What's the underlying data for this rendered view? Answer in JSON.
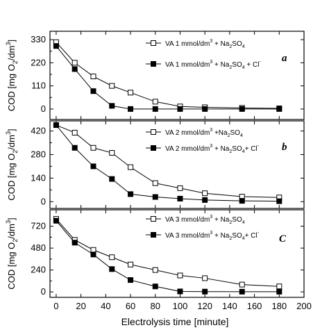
{
  "figure": {
    "xlabel": "Electrolysis time [minute]",
    "xticks": [
      "0",
      "20",
      "40",
      "60",
      "80",
      "100",
      "120",
      "140",
      "160",
      "180",
      "200"
    ]
  },
  "chart_data": [
    {
      "type": "line",
      "panel_label": "a",
      "ylabel": "COD [mg O2/dm3]",
      "xlabel": "",
      "xlim": [
        -5,
        200
      ],
      "ylim": [
        -50,
        370
      ],
      "yticks": [
        0,
        110,
        220,
        330
      ],
      "ytick_labels": [
        "0",
        "110",
        "220",
        "330"
      ],
      "legend_position": "top-right",
      "series": [
        {
          "name": "VA 1 mmol/dm3 + Na2SO4",
          "marker": "open-square",
          "x": [
            0,
            15,
            30,
            45,
            60,
            80,
            100,
            120,
            150,
            180
          ],
          "y": [
            318,
            220,
            155,
            110,
            78,
            35,
            12,
            8,
            5,
            3
          ]
        },
        {
          "name": "VA 1 mmol/dm3 + Na2SO4 + Cl-",
          "marker": "filled-square",
          "x": [
            0,
            15,
            30,
            45,
            60,
            80,
            100,
            120,
            150,
            180
          ],
          "y": [
            300,
            190,
            85,
            15,
            0,
            0,
            0,
            0,
            0,
            0
          ]
        }
      ],
      "legend_labels": [
        {
          "base": "VA 1 mmol/dm",
          "sup": "3",
          "mid": " + Na",
          "sub": "2",
          "tail": "SO",
          "sub2": "4",
          "end": ""
        },
        {
          "base": "VA 1 mmol/dm",
          "sup": "3",
          "mid": " + Na",
          "sub": "2",
          "tail": "SO",
          "sub2": "4",
          "end": " + Cl",
          "sup2": "-"
        }
      ]
    },
    {
      "type": "line",
      "panel_label": "b",
      "ylabel": "COD [mg O2/dm3]",
      "xlabel": "",
      "xlim": [
        -5,
        200
      ],
      "ylim": [
        -40,
        480
      ],
      "yticks": [
        0,
        140,
        280,
        420
      ],
      "ytick_labels": [
        "0",
        "140",
        "280",
        "420"
      ],
      "legend_position": "top-right",
      "series": [
        {
          "name": "VA 2 mmol/dm3 + Na2SO4",
          "marker": "open-square",
          "x": [
            0,
            15,
            30,
            45,
            60,
            80,
            100,
            120,
            150,
            180
          ],
          "y": [
            455,
            410,
            320,
            290,
            205,
            110,
            80,
            50,
            30,
            25
          ]
        },
        {
          "name": "VA 2 mmol/dm3 + Na2SO4 + Cl-",
          "marker": "filled-square",
          "x": [
            0,
            15,
            30,
            45,
            60,
            80,
            100,
            120,
            150,
            180
          ],
          "y": [
            455,
            320,
            210,
            135,
            45,
            28,
            18,
            10,
            5,
            3
          ]
        }
      ],
      "legend_labels": [
        {
          "base": "VA 2 mmol/dm",
          "sup": "3",
          "mid": " +Na",
          "sub": "2",
          "tail": "SO",
          "sub2": "4",
          "end": ""
        },
        {
          "base": "VA 2 mmol/dm",
          "sup": "3",
          "mid": " + Na",
          "sub": "2",
          "tail": "SO",
          "sub2": "4",
          "end": "+ Cl",
          "sup2": "-"
        }
      ]
    },
    {
      "type": "line",
      "panel_label": "C",
      "ylabel": "COD [mg O2/dm3]",
      "xlabel": "Electrolysis time [minute]",
      "xlim": [
        -5,
        200
      ],
      "ylim": [
        -60,
        900
      ],
      "yticks": [
        0,
        240,
        480,
        720
      ],
      "ytick_labels": [
        "0",
        "240",
        "480",
        "720"
      ],
      "legend_position": "top-right",
      "series": [
        {
          "name": "VA 3 mmol/dm3 + Na2SO4",
          "marker": "open-square",
          "x": [
            0,
            15,
            30,
            45,
            60,
            80,
            100,
            120,
            150,
            180
          ],
          "y": [
            800,
            570,
            460,
            380,
            300,
            240,
            180,
            150,
            80,
            60
          ]
        },
        {
          "name": "VA 3 mmol/dm3 + Na2SO4 + Cl-",
          "marker": "filled-square",
          "x": [
            0,
            15,
            30,
            45,
            60,
            80,
            100,
            120,
            150,
            180
          ],
          "y": [
            780,
            540,
            410,
            250,
            130,
            60,
            5,
            3,
            2,
            2
          ]
        }
      ],
      "legend_labels": [
        {
          "base": "VA 3 mmol/dm",
          "sup": "3",
          "mid": " + Na",
          "sub": "2",
          "tail": "SO",
          "sub2": "4",
          "end": ""
        },
        {
          "base": "VA 3 mmol/dm",
          "sup": "3",
          "mid": " + Na",
          "sub": "2",
          "tail": "SO",
          "sub2": "4",
          "end": "+ Cl",
          "sup2": "-"
        }
      ]
    }
  ]
}
